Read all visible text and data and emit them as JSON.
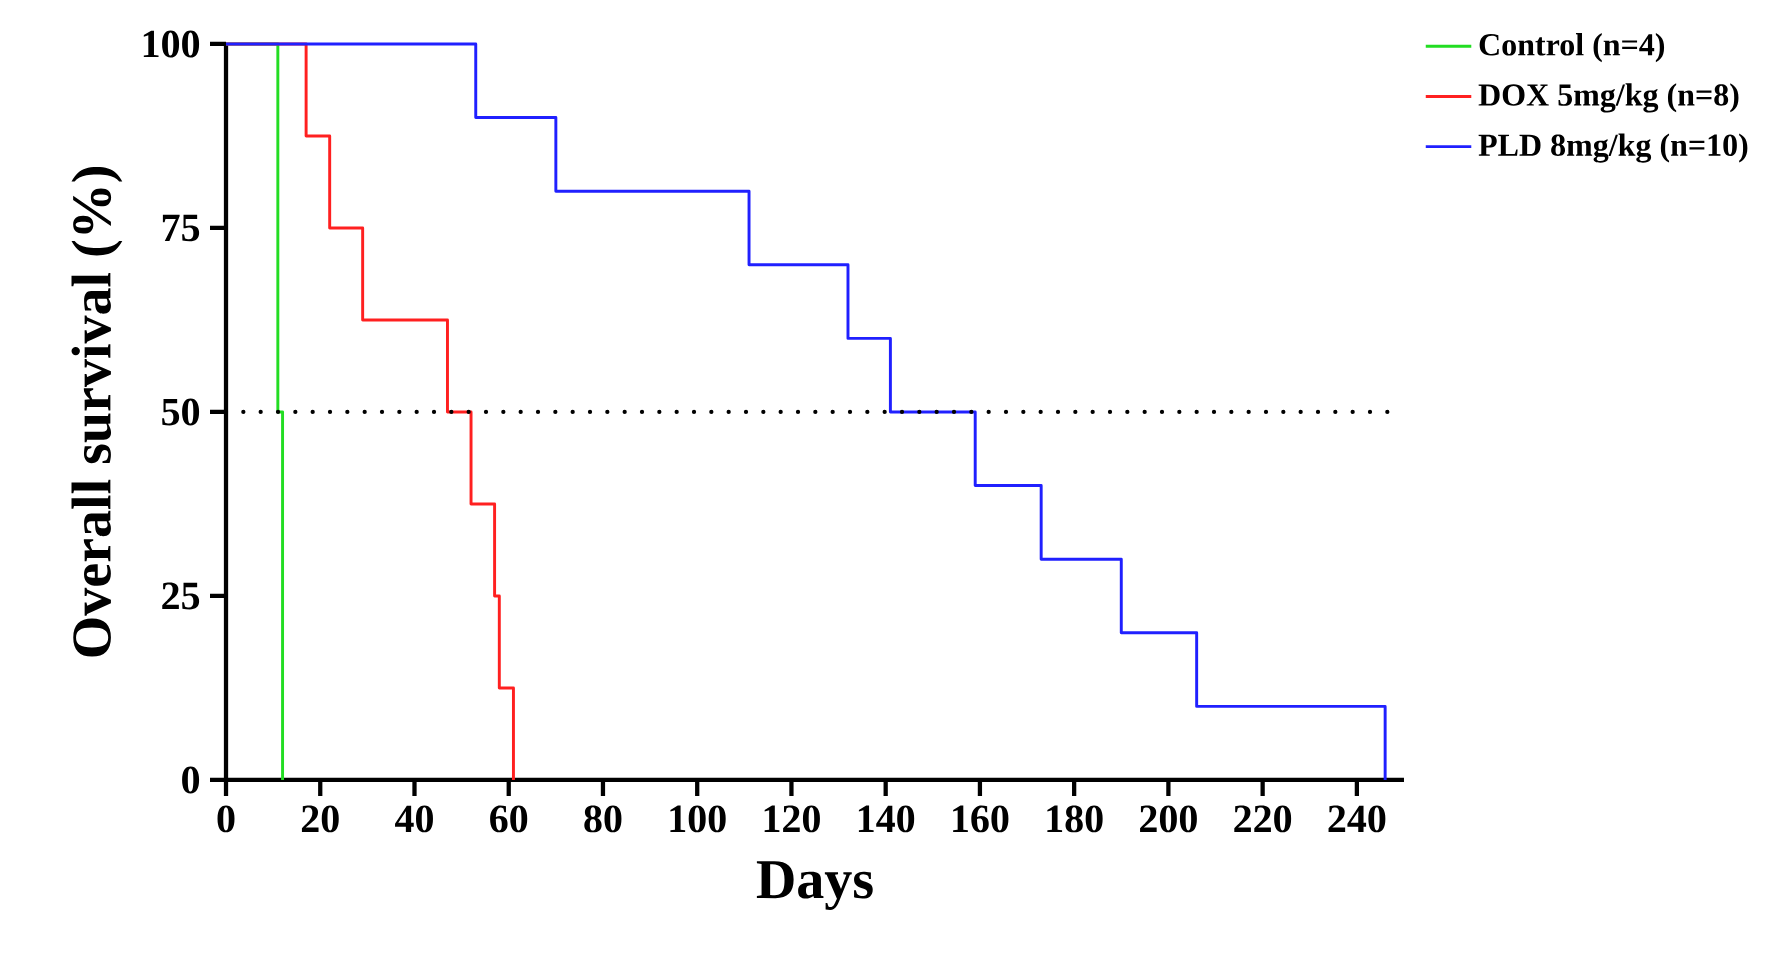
{
  "chart_data": {
    "type": "step",
    "xlabel": "Days",
    "ylabel": "Overall survival (%)",
    "xlim": [
      0,
      250
    ],
    "ylim": [
      0,
      100
    ],
    "xticks": [
      0,
      20,
      40,
      60,
      80,
      100,
      120,
      140,
      160,
      180,
      200,
      220,
      240
    ],
    "yticks": [
      0,
      25,
      50,
      75,
      100
    ],
    "legend": "right",
    "ref_lines": [
      {
        "axis": "y",
        "value": 50,
        "line_style": "dotted",
        "color": "#000000"
      }
    ],
    "series": [
      {
        "name": "Control (n=4)",
        "color": "#22dd22",
        "x": [
          0,
          11,
          12
        ],
        "values": [
          100,
          50,
          0
        ]
      },
      {
        "name": "DOX 5mg/kg (n=8)",
        "color": "#ff2020",
        "x": [
          0,
          17,
          22,
          29,
          47,
          52,
          57,
          58,
          61
        ],
        "values": [
          100,
          87.5,
          75,
          62.5,
          50,
          37.5,
          25,
          12.5,
          0
        ]
      },
      {
        "name": "PLD 8mg/kg (n=10)",
        "color": "#2020ff",
        "x": [
          0,
          53,
          70,
          111,
          132,
          141,
          159,
          173,
          190,
          206,
          246
        ],
        "values": [
          100,
          90,
          80,
          70,
          60,
          50,
          40,
          30,
          20,
          10,
          0
        ]
      }
    ]
  }
}
